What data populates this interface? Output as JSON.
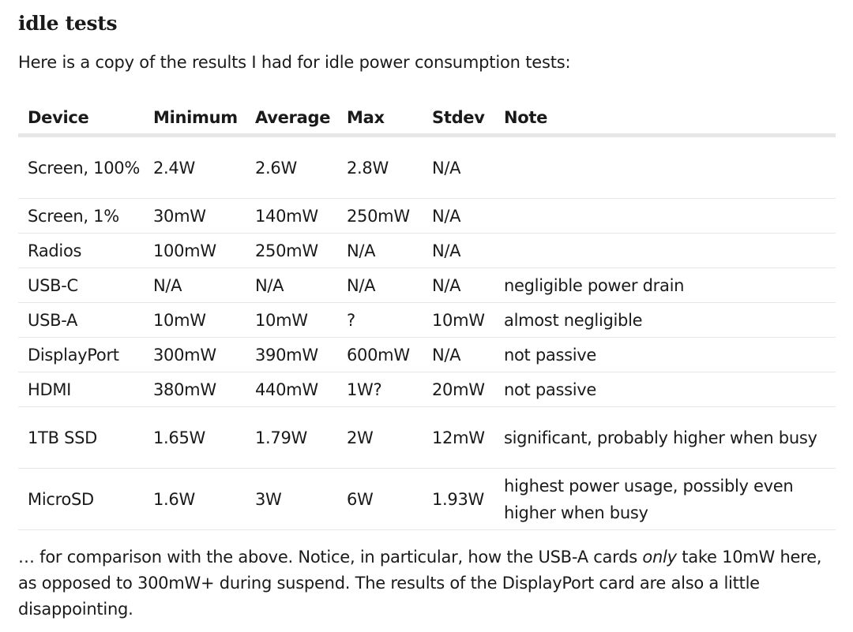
{
  "heading": "idle tests",
  "intro": "Here is a copy of the results I had for idle power consumption tests:",
  "table": {
    "headers": [
      "Device",
      "Minimum",
      "Average",
      "Max",
      "Stdev",
      "Note"
    ],
    "rows": [
      [
        "Screen, 100%",
        "2.4W",
        "2.6W",
        "2.8W",
        "N/A",
        ""
      ],
      [
        "Screen, 1%",
        "30mW",
        "140mW",
        "250mW",
        "N/A",
        ""
      ],
      [
        "Radios",
        "100mW",
        "250mW",
        "N/A",
        "N/A",
        ""
      ],
      [
        "USB-C",
        "N/A",
        "N/A",
        "N/A",
        "N/A",
        "negligible power drain"
      ],
      [
        "USB-A",
        "10mW",
        "10mW",
        "?",
        "10mW",
        "almost negligible"
      ],
      [
        "DisplayPort",
        "300mW",
        "390mW",
        "600mW",
        "N/A",
        "not passive"
      ],
      [
        "HDMI",
        "380mW",
        "440mW",
        "1W?",
        "20mW",
        "not passive"
      ],
      [
        "1TB SSD",
        "1.65W",
        "1.79W",
        "2W",
        "12mW",
        "significant, probably higher when busy"
      ],
      [
        "MicroSD",
        "1.6W",
        "3W",
        "6W",
        "1.93W",
        "highest power usage, possibly even higher when busy"
      ]
    ]
  },
  "outro": {
    "before": "… for comparison with the above. Notice, in particular, how the USB-A cards ",
    "emphasis": "only",
    "after": " take 10mW here, as opposed to 300mW+ during suspend. The results of the DisplayPort card are also a little disappointing."
  }
}
